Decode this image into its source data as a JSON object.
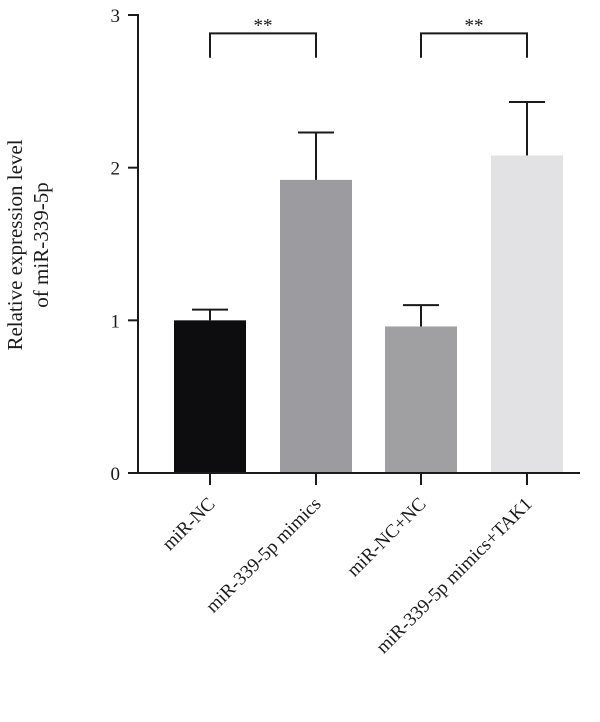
{
  "chart_data": {
    "type": "bar",
    "title": "",
    "xlabel": "",
    "ylabel_lines": [
      "Relative expression level",
      "of miR-339-5p"
    ],
    "ylim": [
      0,
      3
    ],
    "yticks": [
      "0",
      "1",
      "2",
      "3"
    ],
    "categories": [
      "miR-NC",
      "miR-339-5p mimics",
      "miR-NC+NC",
      "miR-339-5p mimics+TAK1"
    ],
    "values": [
      1.0,
      1.92,
      0.96,
      2.08
    ],
    "errors": [
      0.07,
      0.31,
      0.14,
      0.35
    ],
    "colors": [
      "#0d0d0f",
      "#9c9ca0",
      "#a0a0a2",
      "#e2e2e4"
    ],
    "significance": [
      {
        "from": 0,
        "to": 1,
        "label": "**"
      },
      {
        "from": 2,
        "to": 3,
        "label": "**"
      }
    ]
  }
}
